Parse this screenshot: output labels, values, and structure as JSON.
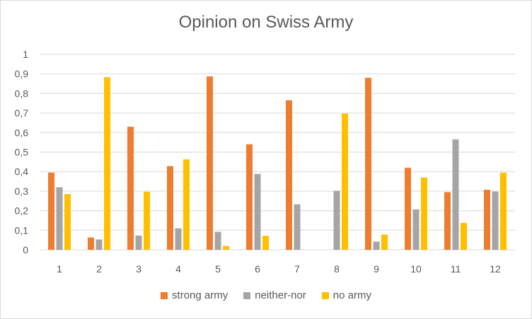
{
  "chart_data": {
    "type": "bar",
    "title": "Opinion on Swiss Army",
    "xlabel": "",
    "ylabel": "",
    "categories": [
      "1",
      "2",
      "3",
      "4",
      "5",
      "6",
      "7",
      "8",
      "9",
      "10",
      "11",
      "12"
    ],
    "y_ticks": [
      "0",
      "0,1",
      "0,2",
      "0,3",
      "0,4",
      "0,5",
      "0,6",
      "0,7",
      "0,8",
      "0,9",
      "1"
    ],
    "ylim": [
      0,
      1
    ],
    "grid": true,
    "legend_position": "bottom",
    "series": [
      {
        "name": "strong army",
        "color": "#ED7D31",
        "values": [
          0.395,
          0.063,
          0.63,
          0.428,
          0.887,
          0.54,
          0.765,
          0,
          0.88,
          0.42,
          0.295,
          0.307
        ]
      },
      {
        "name": "neither-nor",
        "color": "#A5A5A5",
        "values": [
          0.32,
          0.053,
          0.073,
          0.11,
          0.092,
          0.388,
          0.233,
          0.302,
          0.042,
          0.207,
          0.565,
          0.298
        ]
      },
      {
        "name": "no army",
        "color": "#FFC000",
        "values": [
          0.285,
          0.883,
          0.297,
          0.463,
          0.02,
          0.072,
          0,
          0.697,
          0.078,
          0.37,
          0.138,
          0.395
        ]
      }
    ]
  }
}
